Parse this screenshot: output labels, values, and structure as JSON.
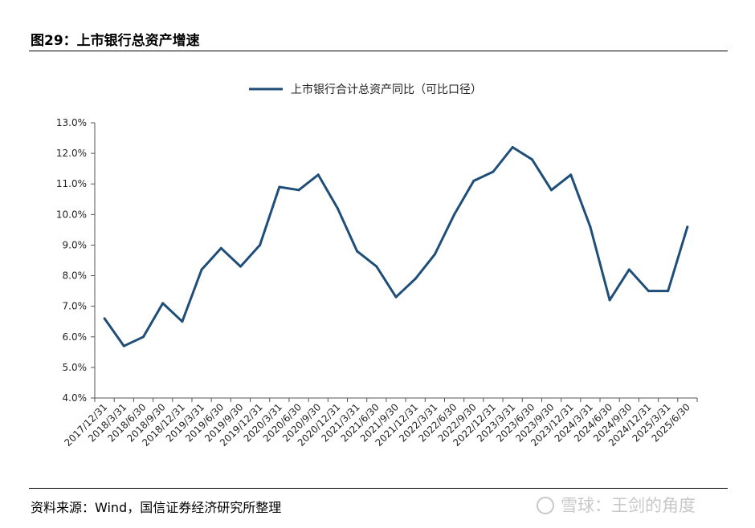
{
  "figure": {
    "title": "图29：上市银行总资产增速",
    "source": "资料来源：Wind，国信证券经济研究所整理",
    "watermark": "雪球：王剑的角度"
  },
  "chart_data": {
    "type": "line",
    "title": "",
    "xlabel": "",
    "ylabel": "",
    "categories": [
      "2017/12/31",
      "2018/3/31",
      "2018/6/30",
      "2018/9/30",
      "2018/12/31",
      "2019/3/31",
      "2019/6/30",
      "2019/9/30",
      "2019/12/31",
      "2020/3/31",
      "2020/6/30",
      "2020/9/30",
      "2020/12/31",
      "2021/3/31",
      "2021/6/30",
      "2021/9/30",
      "2021/12/31",
      "2022/3/31",
      "2022/6/30",
      "2022/9/30",
      "2022/12/31",
      "2023/3/31",
      "2023/6/30",
      "2023/9/30",
      "2023/12/31",
      "2024/3/31",
      "2024/6/30",
      "2024/9/30",
      "2024/12/31",
      "2025/3/31",
      "2025/6/30"
    ],
    "series": [
      {
        "name": "上市银行合计总资产同比（可比口径）",
        "color": "#1f4e79",
        "values": [
          6.6,
          5.7,
          6.0,
          7.1,
          6.5,
          8.2,
          8.9,
          8.3,
          9.0,
          10.9,
          10.8,
          11.3,
          10.2,
          8.8,
          8.3,
          7.3,
          7.9,
          8.7,
          10.0,
          11.1,
          11.4,
          12.2,
          11.8,
          10.8,
          11.3,
          9.6,
          7.2,
          8.2,
          7.5,
          7.5,
          9.6
        ]
      }
    ],
    "ylim": [
      4.0,
      13.0
    ],
    "yticks": [
      4.0,
      5.0,
      6.0,
      7.0,
      8.0,
      9.0,
      10.0,
      11.0,
      12.0,
      13.0
    ],
    "ytick_labels": [
      "4.0%",
      "5.0%",
      "6.0%",
      "7.0%",
      "8.0%",
      "9.0%",
      "10.0%",
      "11.0%",
      "12.0%",
      "13.0%"
    ],
    "grid": false,
    "legend_position": "top-center"
  }
}
